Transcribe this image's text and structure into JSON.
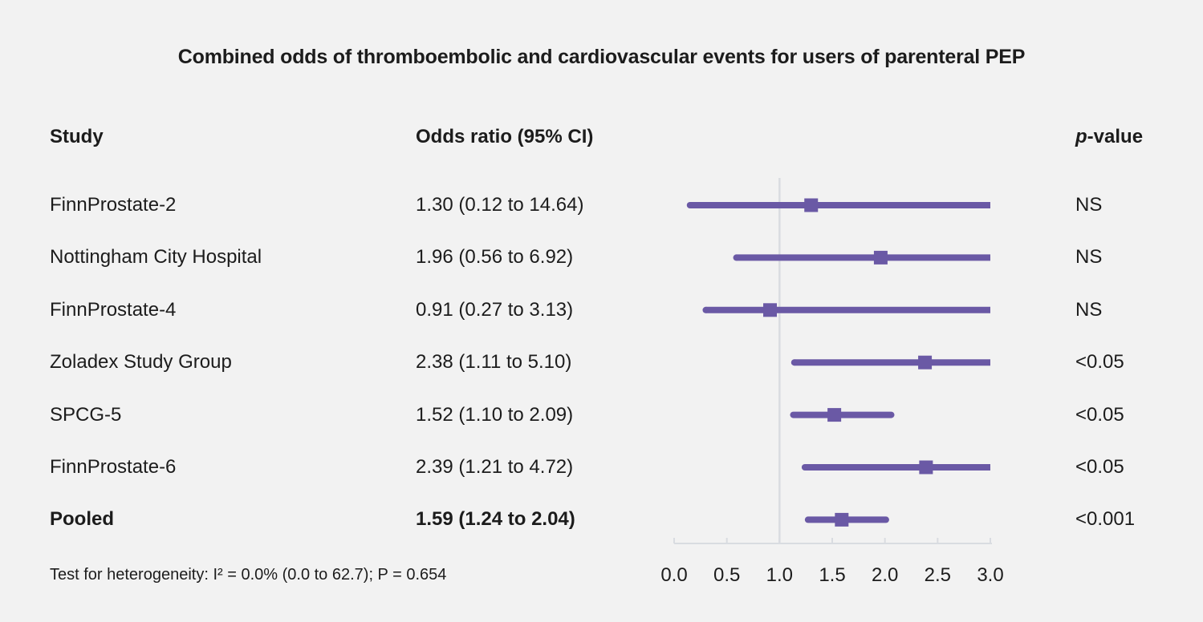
{
  "title": "Combined odds of thromboembolic and cardiovascular events for users of parenteral PEP",
  "columns": {
    "study": "Study",
    "odds_ratio": "Odds ratio (95% CI)",
    "p_italic": "p",
    "p_rest": "-value"
  },
  "footer": "Test for heterogeneity: I² = 0.0% (0.0 to 62.7); P = 0.654",
  "colors": {
    "accent": "#6a59a5",
    "axis": "#d9dce1",
    "background": "#f2f2f2",
    "text": "#1c1c1c"
  },
  "chart_data": {
    "type": "forest",
    "title": "Combined odds of thromboembolic and cardiovascular events for users of parenteral PEP",
    "xlabel": "",
    "xlim": [
      0.0,
      3.0
    ],
    "xticks": [
      0.0,
      0.5,
      1.0,
      1.5,
      2.0,
      2.5,
      3.0
    ],
    "xtick_labels": [
      "0.0",
      "0.5",
      "1.0",
      "1.5",
      "2.0",
      "2.5",
      "3.0"
    ],
    "reference_line": 1.0,
    "grid": false,
    "legend": "none",
    "rows": [
      {
        "study": "FinnProstate-2",
        "or": 1.3,
        "ci_low": 0.12,
        "ci_high": 14.64,
        "or_label": "1.30 (0.12 to 14.64)",
        "p": "NS",
        "bold": false
      },
      {
        "study": "Nottingham City Hospital",
        "or": 1.96,
        "ci_low": 0.56,
        "ci_high": 6.92,
        "or_label": "1.96 (0.56 to 6.92)",
        "p": "NS",
        "bold": false
      },
      {
        "study": "FinnProstate-4",
        "or": 0.91,
        "ci_low": 0.27,
        "ci_high": 3.13,
        "or_label": "0.91 (0.27 to 3.13)",
        "p": "NS",
        "bold": false
      },
      {
        "study": "Zoladex Study Group",
        "or": 2.38,
        "ci_low": 1.11,
        "ci_high": 5.1,
        "or_label": "2.38 (1.11 to 5.10)",
        "p": "<0.05",
        "bold": false
      },
      {
        "study": "SPCG-5",
        "or": 1.52,
        "ci_low": 1.1,
        "ci_high": 2.09,
        "or_label": "1.52 (1.10 to 2.09)",
        "p": "<0.05",
        "bold": false
      },
      {
        "study": "FinnProstate-6",
        "or": 2.39,
        "ci_low": 1.21,
        "ci_high": 4.72,
        "or_label": "2.39 (1.21 to 4.72)",
        "p": "<0.05",
        "bold": false
      },
      {
        "study": "Pooled",
        "or": 1.59,
        "ci_low": 1.24,
        "ci_high": 2.04,
        "or_label": "1.59 (1.24 to 2.04)",
        "p": "<0.001",
        "bold": true
      }
    ]
  }
}
